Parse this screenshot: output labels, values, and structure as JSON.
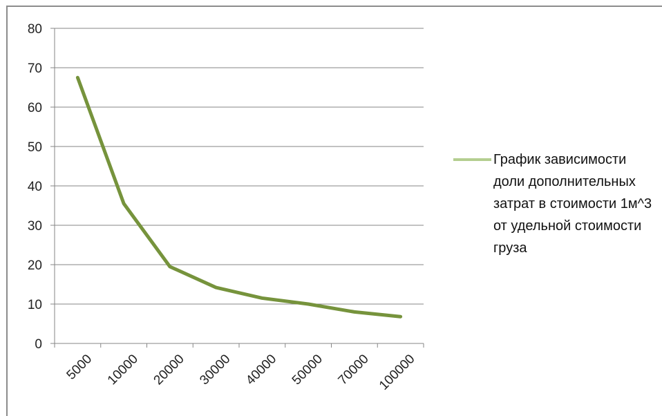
{
  "chart_data": {
    "type": "line",
    "categories": [
      "5000",
      "10000",
      "20000",
      "30000",
      "40000",
      "50000",
      "70000",
      "100000"
    ],
    "series": [
      {
        "name": "График зависимости доли дополнительных затрат в стоимости 1м^3 от удельной стоимости груза",
        "values": [
          67.5,
          35.5,
          19.5,
          14.2,
          11.5,
          10.0,
          8.0,
          6.8
        ],
        "color": "#76933c",
        "legend_color": "#b4ce90"
      }
    ],
    "y_ticks": [
      "0",
      "10",
      "20",
      "30",
      "40",
      "50",
      "60",
      "70",
      "80"
    ],
    "ylim": [
      0,
      80
    ],
    "grid": true,
    "legend_position": "right"
  }
}
